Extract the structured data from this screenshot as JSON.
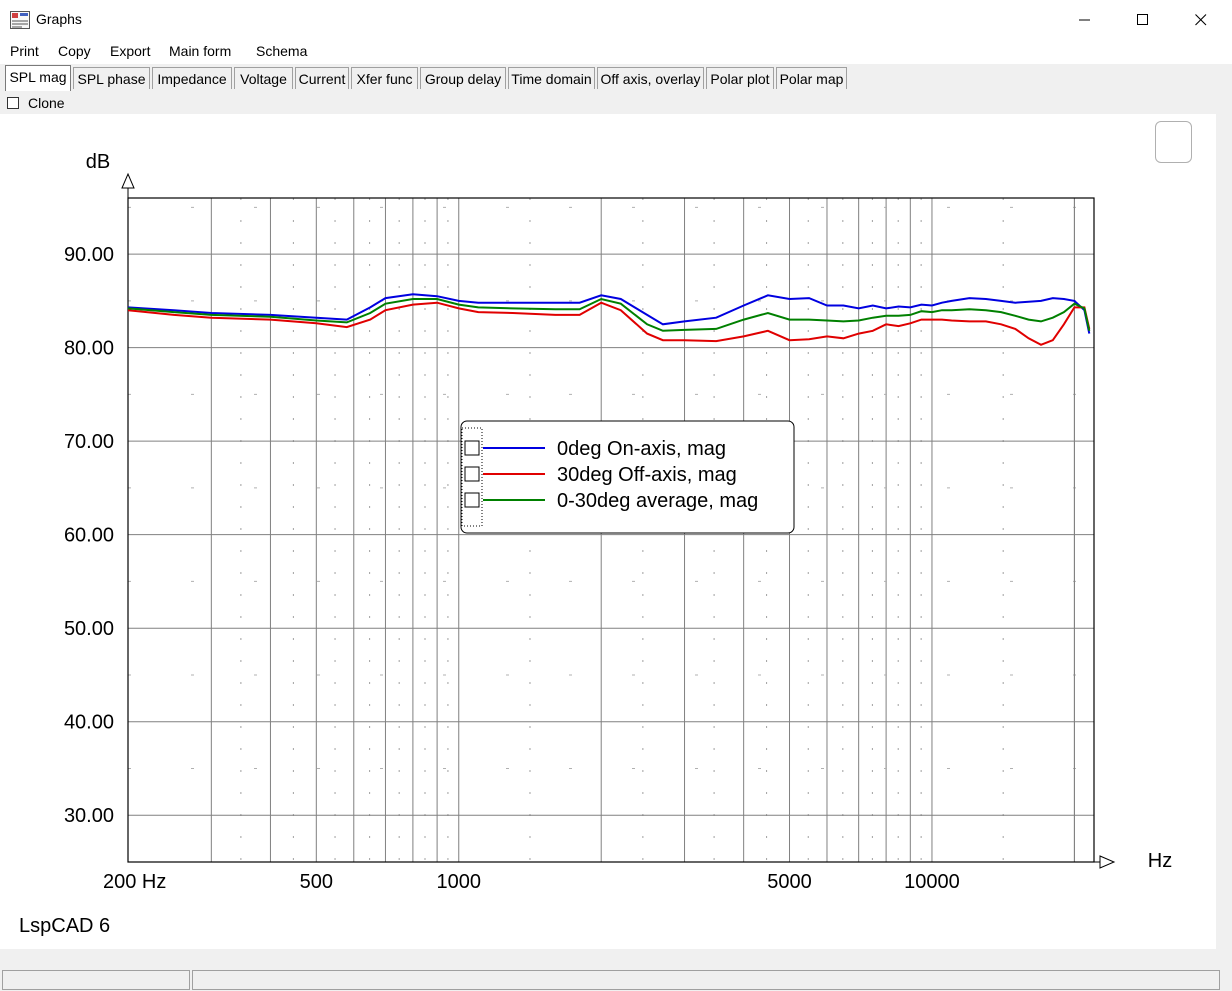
{
  "window": {
    "title": "Graphs"
  },
  "menu": [
    "Print",
    "Copy",
    "Export",
    "Main form",
    "Schema"
  ],
  "tabs": [
    "SPL mag",
    "SPL phase",
    "Impedance",
    "Voltage",
    "Current",
    "Xfer func",
    "Group delay",
    "Time domain",
    "Off axis, overlay",
    "Polar plot",
    "Polar map"
  ],
  "active_tab": "SPL mag",
  "clone": {
    "label": "Clone",
    "checked": false
  },
  "graph": {
    "watermark": "LspCAD 6"
  },
  "colors": {
    "blue": "#0000e0",
    "red": "#e00000",
    "green": "#008000",
    "grid": "#808080"
  },
  "chart_data": {
    "type": "line",
    "ylabel": "dB",
    "xlabel": "Hz",
    "x_scale": "log",
    "xlim": [
      200,
      22000
    ],
    "ylim": [
      25,
      96
    ],
    "xtick_labels": [
      {
        "value": 200,
        "label": "200 Hz"
      },
      {
        "value": 500,
        "label": "500"
      },
      {
        "value": 1000,
        "label": "1000"
      },
      {
        "value": 5000,
        "label": "5000"
      },
      {
        "value": 10000,
        "label": "10000"
      }
    ],
    "ytick_labels": [
      {
        "value": 90,
        "label": "90.00"
      },
      {
        "value": 80,
        "label": "80.00"
      },
      {
        "value": 70,
        "label": "70.00"
      },
      {
        "value": 60,
        "label": "60.00"
      },
      {
        "value": 50,
        "label": "50.00"
      },
      {
        "value": 40,
        "label": "40.00"
      },
      {
        "value": 30,
        "label": "30.00"
      }
    ],
    "grid": true,
    "legend_position": "center",
    "series": [
      {
        "name": "0deg On-axis, mag",
        "color": "#0000e0",
        "points": [
          [
            200,
            84.3
          ],
          [
            250,
            84.0
          ],
          [
            300,
            83.7
          ],
          [
            400,
            83.5
          ],
          [
            500,
            83.2
          ],
          [
            580,
            83.0
          ],
          [
            650,
            84.3
          ],
          [
            700,
            85.3
          ],
          [
            800,
            85.7
          ],
          [
            900,
            85.5
          ],
          [
            1000,
            85.0
          ],
          [
            1100,
            84.8
          ],
          [
            1300,
            84.8
          ],
          [
            1600,
            84.8
          ],
          [
            1800,
            84.8
          ],
          [
            2000,
            85.6
          ],
          [
            2200,
            85.2
          ],
          [
            2500,
            83.5
          ],
          [
            2700,
            82.5
          ],
          [
            3000,
            82.8
          ],
          [
            3500,
            83.2
          ],
          [
            4000,
            84.5
          ],
          [
            4500,
            85.6
          ],
          [
            5000,
            85.2
          ],
          [
            5500,
            85.3
          ],
          [
            6000,
            84.5
          ],
          [
            6500,
            84.5
          ],
          [
            7000,
            84.2
          ],
          [
            7500,
            84.5
          ],
          [
            8000,
            84.2
          ],
          [
            8500,
            84.4
          ],
          [
            9000,
            84.3
          ],
          [
            9500,
            84.6
          ],
          [
            10000,
            84.5
          ],
          [
            10500,
            84.8
          ],
          [
            11000,
            85.0
          ],
          [
            12000,
            85.3
          ],
          [
            13000,
            85.2
          ],
          [
            14000,
            85.0
          ],
          [
            15000,
            84.8
          ],
          [
            16000,
            84.9
          ],
          [
            17000,
            85.0
          ],
          [
            18000,
            85.3
          ],
          [
            19000,
            85.2
          ],
          [
            20000,
            85.0
          ],
          [
            21000,
            84.0
          ],
          [
            21500,
            81.5
          ]
        ]
      },
      {
        "name": "30deg Off-axis, mag",
        "color": "#e00000",
        "points": [
          [
            200,
            84.0
          ],
          [
            250,
            83.5
          ],
          [
            300,
            83.2
          ],
          [
            400,
            83.0
          ],
          [
            500,
            82.6
          ],
          [
            580,
            82.2
          ],
          [
            650,
            83.0
          ],
          [
            700,
            84.0
          ],
          [
            800,
            84.6
          ],
          [
            900,
            84.8
          ],
          [
            1000,
            84.2
          ],
          [
            1100,
            83.8
          ],
          [
            1300,
            83.7
          ],
          [
            1600,
            83.5
          ],
          [
            1800,
            83.5
          ],
          [
            2000,
            84.8
          ],
          [
            2200,
            84.0
          ],
          [
            2500,
            81.5
          ],
          [
            2700,
            80.8
          ],
          [
            3000,
            80.8
          ],
          [
            3500,
            80.7
          ],
          [
            4000,
            81.2
          ],
          [
            4500,
            81.8
          ],
          [
            5000,
            80.8
          ],
          [
            5500,
            80.9
          ],
          [
            6000,
            81.2
          ],
          [
            6500,
            81.0
          ],
          [
            7000,
            81.5
          ],
          [
            7500,
            81.8
          ],
          [
            8000,
            82.5
          ],
          [
            8500,
            82.3
          ],
          [
            9000,
            82.6
          ],
          [
            9500,
            83.0
          ],
          [
            10000,
            83.0
          ],
          [
            10500,
            83.0
          ],
          [
            11000,
            82.9
          ],
          [
            12000,
            82.8
          ],
          [
            13000,
            82.8
          ],
          [
            14000,
            82.5
          ],
          [
            15000,
            82.0
          ],
          [
            16000,
            81.0
          ],
          [
            17000,
            80.3
          ],
          [
            18000,
            80.8
          ],
          [
            19000,
            82.5
          ],
          [
            20000,
            84.3
          ],
          [
            21000,
            84.3
          ],
          [
            21500,
            82.0
          ]
        ]
      },
      {
        "name": "0-30deg average, mag",
        "color": "#008000",
        "points": [
          [
            200,
            84.2
          ],
          [
            250,
            83.8
          ],
          [
            300,
            83.5
          ],
          [
            400,
            83.3
          ],
          [
            500,
            82.9
          ],
          [
            580,
            82.7
          ],
          [
            650,
            83.7
          ],
          [
            700,
            84.7
          ],
          [
            800,
            85.2
          ],
          [
            900,
            85.2
          ],
          [
            1000,
            84.6
          ],
          [
            1100,
            84.3
          ],
          [
            1300,
            84.2
          ],
          [
            1600,
            84.1
          ],
          [
            1800,
            84.1
          ],
          [
            2000,
            85.2
          ],
          [
            2200,
            84.7
          ],
          [
            2500,
            82.5
          ],
          [
            2700,
            81.8
          ],
          [
            3000,
            81.9
          ],
          [
            3500,
            82.0
          ],
          [
            4000,
            83.0
          ],
          [
            4500,
            83.7
          ],
          [
            5000,
            83.0
          ],
          [
            5500,
            83.0
          ],
          [
            6000,
            82.9
          ],
          [
            6500,
            82.8
          ],
          [
            7000,
            82.9
          ],
          [
            7500,
            83.2
          ],
          [
            8000,
            83.4
          ],
          [
            8500,
            83.4
          ],
          [
            9000,
            83.5
          ],
          [
            9500,
            83.9
          ],
          [
            10000,
            83.8
          ],
          [
            10500,
            84.0
          ],
          [
            11000,
            84.0
          ],
          [
            12000,
            84.1
          ],
          [
            13000,
            84.0
          ],
          [
            14000,
            83.8
          ],
          [
            15000,
            83.4
          ],
          [
            16000,
            83.0
          ],
          [
            17000,
            82.8
          ],
          [
            18000,
            83.2
          ],
          [
            19000,
            83.8
          ],
          [
            20000,
            84.7
          ],
          [
            21000,
            84.2
          ],
          [
            21500,
            81.8
          ]
        ]
      }
    ]
  }
}
